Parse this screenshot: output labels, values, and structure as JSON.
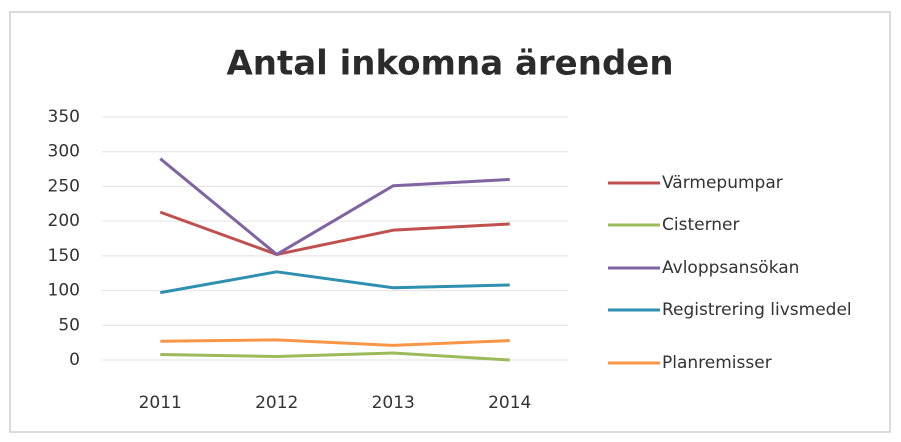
{
  "chart_data": {
    "type": "line",
    "title": "Antal inkomna ärenden",
    "categories": [
      "2011",
      "2012",
      "2013",
      "2014"
    ],
    "series": [
      {
        "name": "Värmepumpar",
        "color": "#c0504d",
        "values": [
          213,
          152,
          187,
          196
        ]
      },
      {
        "name": "Cisterner",
        "color": "#9bbb59",
        "values": [
          8,
          5,
          10,
          0
        ]
      },
      {
        "name": "Avloppsansökan",
        "color": "#8064a2",
        "values": [
          290,
          152,
          251,
          260
        ]
      },
      {
        "name": "Registrering livsmedel",
        "color": "#2e8fb0",
        "values": [
          97,
          127,
          104,
          108
        ]
      },
      {
        "name": "Planremisser",
        "color": "#f79646",
        "values": [
          27,
          29,
          21,
          28
        ]
      }
    ],
    "ylim": [
      0,
      350
    ],
    "yticks": [
      0,
      50,
      100,
      150,
      200,
      250,
      300,
      350
    ],
    "grid": true,
    "legend": "right"
  }
}
